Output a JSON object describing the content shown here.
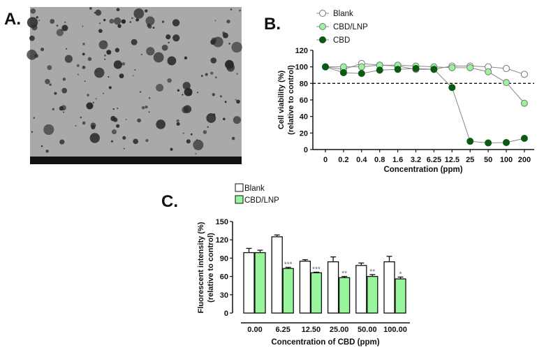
{
  "panel_labels": {
    "a": "A.",
    "b": "B.",
    "c": "C."
  },
  "colors": {
    "light_green": "#98f59c",
    "dark_green": "#0a5a12",
    "tem_bg": "#a9a9a9"
  },
  "chart_data": [
    {
      "type": "line",
      "panel": "B",
      "categories": [
        "0",
        "0.2",
        "0.4",
        "0.8",
        "1.6",
        "3.2",
        "6.25",
        "12.5",
        "25",
        "50",
        "100",
        "200"
      ],
      "series": [
        {
          "name": "Blank",
          "values": [
            100,
            97,
            104,
            102,
            101,
            97,
            97,
            101,
            101,
            100,
            98,
            91
          ]
        },
        {
          "name": "CBD/LNP",
          "values": [
            100,
            100,
            100,
            102,
            102,
            101,
            100,
            99,
            99,
            94,
            81,
            56
          ]
        },
        {
          "name": "CBD",
          "values": [
            100,
            93,
            92,
            96,
            97,
            98,
            97,
            75,
            10,
            8,
            8.5,
            13.5
          ]
        }
      ],
      "reference_line": 80,
      "xlabel": "Concentration (ppm)",
      "ylabel": "Cell viability (%)",
      "ylabel2": "(relative to control)",
      "ylim": [
        0,
        120
      ],
      "yticks": [
        "0",
        "20",
        "40",
        "60",
        "80",
        "100",
        "120"
      ],
      "legend_position": "top-left"
    },
    {
      "type": "bar",
      "panel": "C",
      "categories": [
        "0.00",
        "6.25",
        "12.50",
        "25.00",
        "50.00",
        "100.00"
      ],
      "series": [
        {
          "name": "Blank",
          "values": [
            99,
            125,
            85,
            84,
            78,
            84
          ],
          "errors": [
            7,
            3,
            2.5,
            8,
            4,
            9
          ]
        },
        {
          "name": "CBD/LNP",
          "values": [
            99,
            73,
            66,
            58,
            60,
            56
          ],
          "errors": [
            4,
            2,
            1,
            2,
            3,
            3
          ]
        }
      ],
      "significance": [
        "",
        "***",
        "***",
        "**",
        "**",
        "*"
      ],
      "xlabel": "Concentration of CBD (ppm)",
      "ylabel": "Fluorescent intensity (%)",
      "ylabel2": "(relative to control)",
      "ylim": [
        0,
        150
      ],
      "yticks": [
        "0",
        "30",
        "60",
        "90",
        "120",
        "150"
      ],
      "legend_position": "top-left"
    }
  ]
}
